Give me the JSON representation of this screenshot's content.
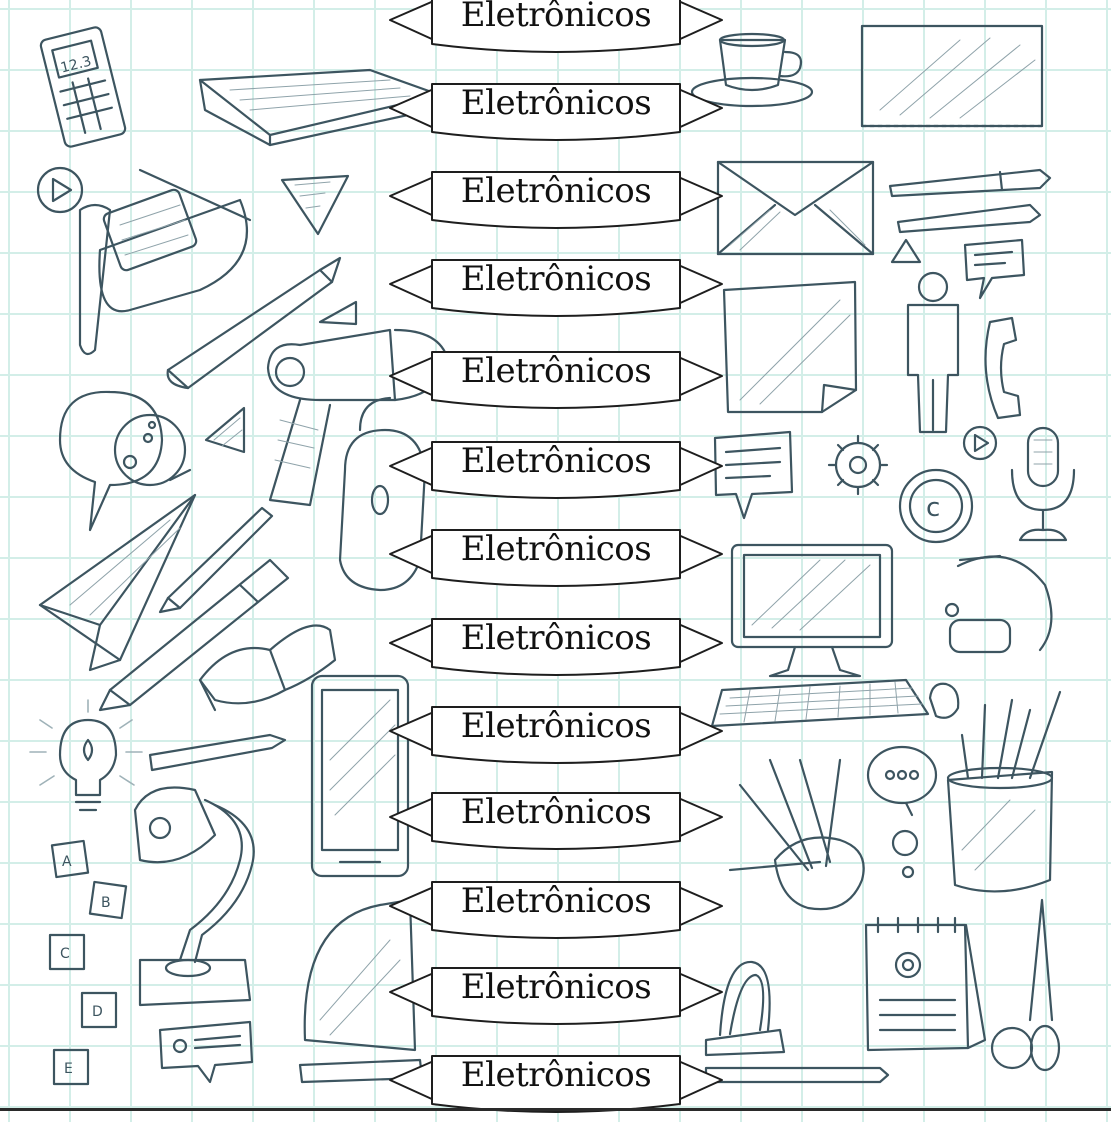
{
  "banners": [
    {
      "label": "Eletrônicos"
    },
    {
      "label": "Eletrônicos"
    },
    {
      "label": "Eletrônicos"
    },
    {
      "label": "Eletrônicos"
    },
    {
      "label": "Eletrônicos"
    },
    {
      "label": "Eletrônicos"
    },
    {
      "label": "Eletrônicos"
    },
    {
      "label": "Eletrônicos"
    },
    {
      "label": "Eletrônicos"
    },
    {
      "label": "Eletrônicos"
    },
    {
      "label": "Eletrônicos"
    },
    {
      "label": "Eletrônicos"
    },
    {
      "label": "Eletrônicos"
    }
  ],
  "doodle_text": {
    "calculator": "12.3",
    "letters": [
      "A",
      "B",
      "C",
      "D",
      "E"
    ],
    "copyright": "c"
  },
  "colors": {
    "grid": "#d3eee8",
    "ink": "#3d5560",
    "banner_outline": "#1e1e1e"
  },
  "icons": [
    "calculator-icon",
    "book-icon",
    "coffee-cup-icon",
    "notepad-icon",
    "play-button-icon",
    "glasses-icon",
    "triangle-icon",
    "pencil-icon",
    "envelope-icon",
    "fountain-pen-icon",
    "person-icon",
    "chat-bubble-icon",
    "sticky-note-icon",
    "phone-handset-icon",
    "hair-dryer-icon",
    "gear-icon",
    "copyright-icon",
    "microphone-icon",
    "paper-plane-icon",
    "computer-mouse-icon",
    "monitor-icon",
    "keyboard-icon",
    "headset-icon",
    "lightbulb-icon",
    "tablet-icon",
    "pencil-cup-icon",
    "desk-lamp-icon",
    "letter-block-icon",
    "calendar-icon",
    "binder-clip-icon",
    "scissors-icon"
  ]
}
